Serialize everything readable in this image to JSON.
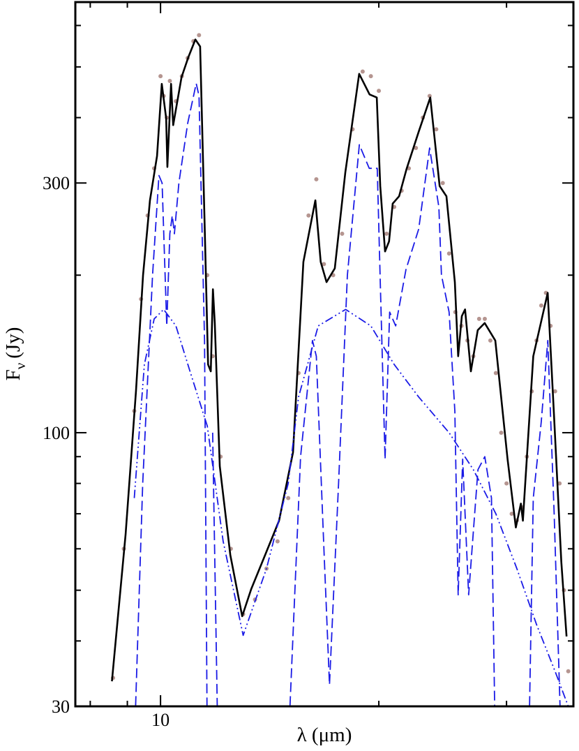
{
  "chart_data": {
    "type": "line",
    "x_label": "λ (μm)",
    "y_label": {
      "main": "F",
      "sub": "ν",
      "unit": "(Jy)"
    },
    "xscale": "log",
    "yscale": "log",
    "xlim": [
      7.63,
      37.1
    ],
    "ylim": [
      30,
      665
    ],
    "xticks": [
      10
    ],
    "xticks_minor": [
      8,
      9,
      20,
      30
    ],
    "yticks": [
      30,
      100,
      300
    ],
    "yticks_minor": [
      40,
      50,
      60,
      70,
      80,
      90,
      200,
      400,
      500,
      600
    ],
    "series": [
      {
        "style": "dots",
        "color": "#b59590",
        "x": [
          8.6,
          8.9,
          9.2,
          9.4,
          9.6,
          9.8,
          10.0,
          10.1,
          10.2,
          10.3,
          10.5,
          10.7,
          10.9,
          11.1,
          11.3,
          11.6,
          11.8,
          12.1,
          12.5,
          13.0,
          13.5,
          14.0,
          14.5,
          15.0,
          15.5,
          16.0,
          16.4,
          16.8,
          17.3,
          17.8,
          18.4,
          19.0,
          19.5,
          20.0,
          20.5,
          21.0,
          21.5,
          22.0,
          22.5,
          23.0,
          23.5,
          24.0,
          24.5,
          25.0,
          25.5,
          26.0,
          26.5,
          27.0,
          27.5,
          28.0,
          28.5,
          29.0,
          29.5,
          30.0,
          30.5,
          31.0,
          31.5,
          32.0,
          32.5,
          33.0,
          33.5,
          34.0,
          34.5,
          35.0,
          35.5,
          36.0,
          36.5
        ],
        "values": [
          34,
          60,
          110,
          180,
          260,
          320,
          480,
          440,
          400,
          470,
          430,
          480,
          520,
          560,
          575,
          200,
          140,
          90,
          60,
          45,
          48,
          55,
          62,
          75,
          130,
          260,
          305,
          210,
          200,
          240,
          380,
          490,
          480,
          450,
          240,
          270,
          290,
          320,
          350,
          400,
          440,
          380,
          300,
          220,
          170,
          160,
          150,
          140,
          165,
          165,
          150,
          130,
          100,
          80,
          70,
          68,
          72,
          90,
          120,
          150,
          175,
          185,
          160,
          120,
          80,
          50,
          35
        ]
      },
      {
        "style": "solid",
        "color": "#000000",
        "x": [
          8.57,
          8.95,
          9.25,
          9.46,
          9.67,
          9.89,
          10.04,
          10.18,
          10.22,
          10.34,
          10.41,
          10.69,
          10.93,
          11.17,
          11.34,
          11.5,
          11.63,
          11.73,
          11.81,
          11.88,
          12.07,
          12.48,
          12.96,
          13.34,
          13.94,
          14.57,
          15.23,
          15.74,
          16.35,
          16.63,
          16.94,
          17.39,
          17.98,
          18.79,
          19.42,
          19.87,
          20.09,
          20.4,
          20.66,
          20.9,
          21.33,
          21.84,
          22.7,
          23.55,
          24.26,
          24.79,
          25.46,
          25.73,
          26.03,
          26.3,
          26.79,
          27.38,
          27.99,
          28.95,
          30.1,
          30.9,
          31.4,
          31.6,
          32.66,
          34.19,
          34.9,
          35.7,
          36.3
        ],
        "values": [
          33.5,
          63.9,
          120,
          200,
          278,
          338,
          464,
          399,
          322,
          464,
          387,
          478,
          523,
          564,
          547,
          254,
          135,
          131,
          188,
          162,
          86.3,
          58.4,
          44.6,
          50.3,
          58.4,
          67.9,
          91.7,
          212,
          278,
          212,
          194,
          206,
          314,
          485,
          443,
          437,
          296,
          222,
          232,
          274,
          283,
          319,
          376,
          437,
          296,
          283,
          194,
          140,
          167,
          172,
          131,
          157,
          162,
          150,
          89,
          65.9,
          73.2,
          67.9,
          140,
          185,
          106.5,
          56.7,
          40.8
        ]
      },
      {
        "style": "dashed",
        "color": "#1a1ae6",
        "x": [
          9.2,
          9.45,
          9.75,
          9.95,
          10.05,
          10.2,
          10.3,
          10.38,
          10.45,
          10.6,
          10.9,
          11.2,
          11.3,
          11.5,
          11.6,
          null,
          11.8,
          12.0,
          null,
          15.0,
          15.6,
          16.2,
          16.4,
          16.8,
          17.1,
          17.6,
          18.1,
          18.8,
          19.4,
          19.9,
          20.1,
          20.4,
          20.7,
          21.1,
          21.8,
          22.7,
          23.5,
          24.2,
          24.4,
          25.0,
          25.46,
          25.73,
          26.1,
          26.6,
          27.4,
          28.0,
          28.6,
          28.95,
          null,
          32.2,
          32.66,
          33.5,
          34.2,
          34.9,
          35.7
        ],
        "values": [
          25,
          80,
          200,
          310,
          300,
          160,
          240,
          260,
          240,
          300,
          390,
          465,
          440,
          150,
          25,
          null,
          100,
          25,
          null,
          25,
          90,
          150,
          140,
          60,
          33,
          80,
          200,
          355,
          320,
          320,
          190,
          89,
          170,
          160,
          205,
          245,
          350,
          270,
          200,
          170,
          110,
          49,
          89,
          49,
          85,
          90,
          75,
          25,
          null,
          25,
          75,
          105,
          150,
          70,
          25
        ]
      },
      {
        "style": "dashdot",
        "color": "#1a1ae6",
        "x": [
          9.2,
          9.5,
          9.8,
          10.1,
          10.5,
          11.0,
          11.6,
          12.2,
          13.0,
          14.0,
          15.0,
          15.5,
          16.5,
          18.0,
          19.5,
          21.0,
          22.7,
          25.0,
          27.0,
          29.0,
          31.0,
          33.0,
          35.0,
          36.5
        ],
        "values": [
          75,
          135,
          165,
          172,
          160,
          130,
          103,
          62,
          41,
          55,
          80,
          117,
          160,
          172,
          160,
          135,
          117,
          100,
          85,
          70,
          55,
          43,
          35,
          30
        ]
      }
    ]
  }
}
